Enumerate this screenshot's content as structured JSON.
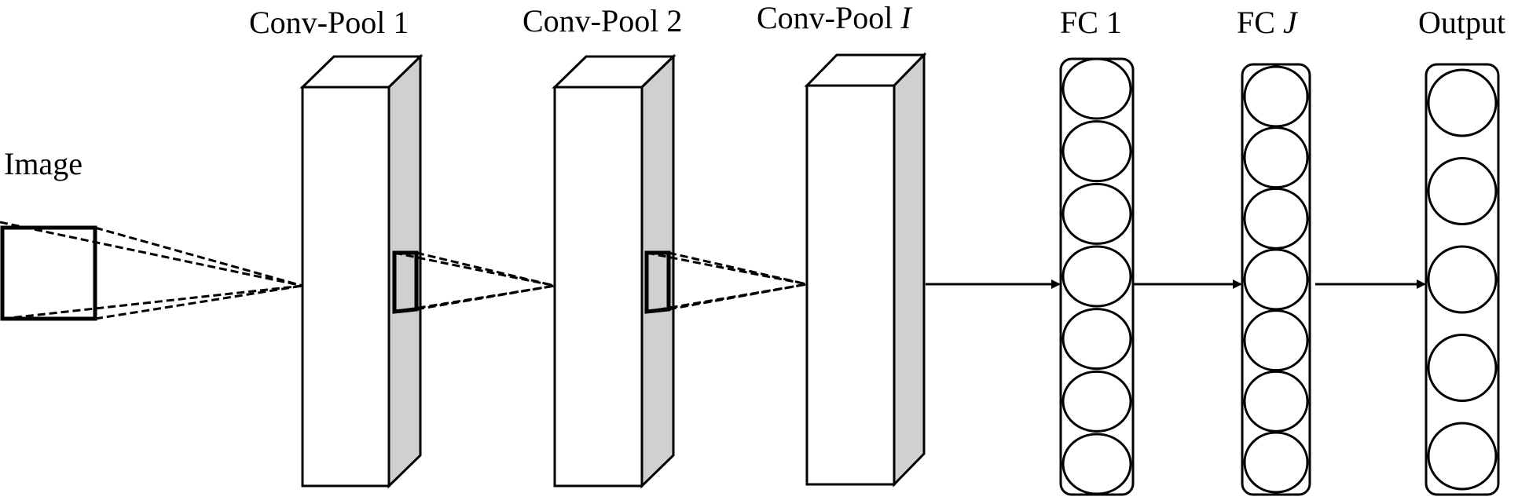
{
  "labels": {
    "image": "Image",
    "conv_pool_1": "Conv-Pool 1",
    "conv_pool_2": "Conv-Pool 2",
    "conv_pool_i_prefix": "Conv-Pool ",
    "conv_pool_i_var": "I",
    "fc_1": "FC 1",
    "fc_j_prefix": "FC ",
    "fc_j_var": "J",
    "output": "Output"
  },
  "layers": {
    "fc1_neurons": 7,
    "fcj_neurons": 7,
    "output_neurons": 5
  },
  "colors": {
    "side_shade": "#d0d0d0",
    "stroke": "#000000"
  }
}
